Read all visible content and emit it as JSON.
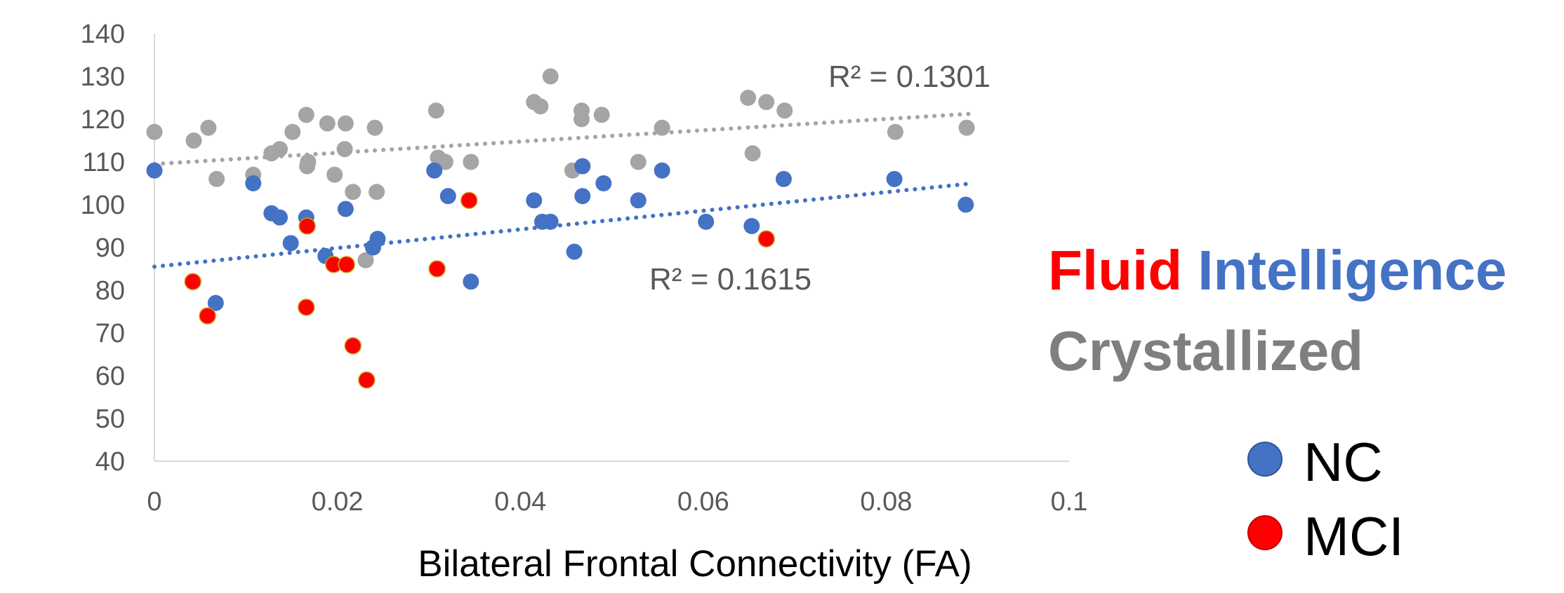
{
  "chart_data": {
    "type": "scatter",
    "xlabel": "Bilateral Frontal Connectivity (FA)",
    "xlim": [
      0,
      0.1
    ],
    "ylim": [
      40,
      140
    ],
    "x_ticks": [
      "0",
      "0.02",
      "0.04",
      "0.06",
      "0.08",
      "0.1"
    ],
    "y_ticks": [
      "40",
      "50",
      "60",
      "70",
      "80",
      "90",
      "100",
      "110",
      "120",
      "130",
      "140"
    ],
    "grid": false,
    "legend_position": "right",
    "series": [
      {
        "name": "Crystallized",
        "color": "#A5A5A5",
        "points": [
          [
            0.0,
            117
          ],
          [
            0.0043,
            115
          ],
          [
            0.0059,
            118
          ],
          [
            0.0068,
            106
          ],
          [
            0.0108,
            107
          ],
          [
            0.0128,
            112
          ],
          [
            0.0137,
            113
          ],
          [
            0.0151,
            117
          ],
          [
            0.0166,
            121
          ],
          [
            0.0167,
            109
          ],
          [
            0.0168,
            110
          ],
          [
            0.0189,
            119
          ],
          [
            0.0197,
            107
          ],
          [
            0.0209,
            119
          ],
          [
            0.0208,
            113
          ],
          [
            0.0217,
            103
          ],
          [
            0.0241,
            118
          ],
          [
            0.0243,
            103
          ],
          [
            0.0231,
            87
          ],
          [
            0.0308,
            122
          ],
          [
            0.031,
            111
          ],
          [
            0.0318,
            110
          ],
          [
            0.0346,
            110
          ],
          [
            0.0415,
            124
          ],
          [
            0.0422,
            123
          ],
          [
            0.0433,
            130
          ],
          [
            0.0457,
            108
          ],
          [
            0.0467,
            122
          ],
          [
            0.0467,
            120
          ],
          [
            0.0489,
            121
          ],
          [
            0.0529,
            110
          ],
          [
            0.0555,
            118
          ],
          [
            0.0649,
            125
          ],
          [
            0.0654,
            112
          ],
          [
            0.0669,
            124
          ],
          [
            0.0689,
            122
          ],
          [
            0.081,
            117
          ],
          [
            0.0888,
            118
          ]
        ]
      },
      {
        "name": "NC",
        "color": "#4472C4",
        "points": [
          [
            0.0,
            108
          ],
          [
            0.0067,
            77
          ],
          [
            0.0108,
            105
          ],
          [
            0.0128,
            98
          ],
          [
            0.0137,
            97
          ],
          [
            0.0149,
            91
          ],
          [
            0.0166,
            97
          ],
          [
            0.0187,
            88
          ],
          [
            0.0209,
            99
          ],
          [
            0.0239,
            90
          ],
          [
            0.0244,
            92
          ],
          [
            0.0306,
            108
          ],
          [
            0.0321,
            102
          ],
          [
            0.0346,
            82
          ],
          [
            0.0415,
            101
          ],
          [
            0.0424,
            96
          ],
          [
            0.0433,
            96
          ],
          [
            0.0459,
            89
          ],
          [
            0.0468,
            109
          ],
          [
            0.0468,
            102
          ],
          [
            0.0491,
            105
          ],
          [
            0.0529,
            101
          ],
          [
            0.0555,
            108
          ],
          [
            0.0603,
            96
          ],
          [
            0.0653,
            95
          ],
          [
            0.0688,
            106
          ],
          [
            0.0809,
            106
          ],
          [
            0.0887,
            100
          ]
        ]
      },
      {
        "name": "MCI",
        "color": "#FF0000",
        "points": [
          [
            0.0042,
            82
          ],
          [
            0.0058,
            74
          ],
          [
            0.0167,
            95
          ],
          [
            0.0166,
            76
          ],
          [
            0.0196,
            86
          ],
          [
            0.021,
            86
          ],
          [
            0.0217,
            67
          ],
          [
            0.0232,
            59
          ],
          [
            0.0309,
            85
          ],
          [
            0.0344,
            101
          ],
          [
            0.0669,
            92
          ]
        ]
      }
    ],
    "trendlines": [
      {
        "series": "Crystallized",
        "color": "#A5A5A5",
        "x": [
          0,
          0.0895
        ],
        "y": [
          109.5,
          121.3
        ],
        "label": "R² = 0.1301"
      },
      {
        "series": "Fluid Intelligence",
        "color": "#4472C4",
        "x": [
          0,
          0.0895
        ],
        "y": [
          85.5,
          105
        ],
        "label": "R² = 0.1615"
      }
    ]
  },
  "title_block": {
    "fluid": "Fluid",
    "intelligence": "Intelligence",
    "crystallized": "Crystallized",
    "fluid_color": "#FF0000",
    "intelligence_color": "#4472C4",
    "crystallized_color": "#7F7F7F"
  },
  "legend": {
    "items": [
      {
        "label": "NC",
        "color": "#4472C4"
      },
      {
        "label": "MCI",
        "color": "#FF0000"
      }
    ]
  }
}
